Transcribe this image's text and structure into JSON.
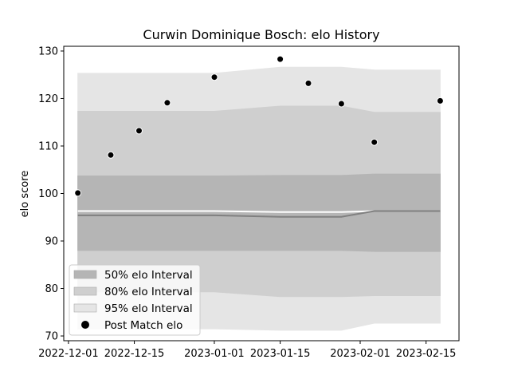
{
  "chart_data": {
    "type": "area",
    "title": "Curwin Dominique Bosch: elo History",
    "xlabel": "",
    "ylabel": "elo score",
    "xlim": [
      "2022-11-30",
      "2023-02-22"
    ],
    "ylim": [
      69,
      131
    ],
    "x_ticks": [
      {
        "date": "2022-12-01",
        "label": "2022-12-01"
      },
      {
        "date": "2022-12-15",
        "label": "2022-12-15"
      },
      {
        "date": "2023-01-01",
        "label": "2023-01-01"
      },
      {
        "date": "2023-01-15",
        "label": "2023-01-15"
      },
      {
        "date": "2023-02-01",
        "label": "2023-02-01"
      },
      {
        "date": "2023-02-15",
        "label": "2023-02-15"
      }
    ],
    "y_ticks": [
      70,
      80,
      90,
      100,
      110,
      120,
      130
    ],
    "band_dates": [
      "2022-12-03",
      "2023-01-01",
      "2023-01-15",
      "2023-01-28",
      "2023-02-04",
      "2023-02-18"
    ],
    "intervals": [
      {
        "name": "95% elo Interval",
        "color": "#e5e5e5",
        "lower": [
          71.5,
          71.5,
          71.2,
          71.2,
          72.7,
          72.7
        ],
        "upper": [
          125.3,
          125.3,
          126.6,
          126.6,
          126.0,
          126.0
        ]
      },
      {
        "name": "80% elo Interval",
        "color": "#cfcfcf",
        "lower": [
          79.3,
          79.3,
          78.3,
          78.3,
          78.5,
          78.5
        ],
        "upper": [
          117.3,
          117.3,
          118.4,
          118.4,
          117.1,
          117.1
        ]
      },
      {
        "name": "50% elo Interval",
        "color": "#b5b5b5",
        "lower": [
          88.0,
          88.0,
          88.0,
          88.0,
          87.8,
          87.8
        ],
        "upper": [
          103.7,
          103.7,
          103.8,
          103.8,
          104.1,
          104.1
        ]
      }
    ],
    "center_light": [
      96.3,
      96.3,
      96.1,
      96.1,
      96.3,
      96.3
    ],
    "center_dark": [
      95.4,
      95.4,
      95.1,
      95.1,
      96.3,
      96.3
    ],
    "points": {
      "name": "Post Match elo",
      "x": [
        "2022-12-03",
        "2022-12-10",
        "2022-12-16",
        "2022-12-22",
        "2023-01-01",
        "2023-01-15",
        "2023-01-21",
        "2023-01-28",
        "2023-02-04",
        "2023-02-18"
      ],
      "y": [
        100.1,
        108.1,
        113.2,
        119.1,
        124.5,
        128.3,
        123.2,
        118.9,
        110.8,
        119.5
      ]
    },
    "legend": {
      "position": "lower-left",
      "entries": [
        {
          "label": "50% elo Interval",
          "color": "#b5b5b5",
          "kind": "patch"
        },
        {
          "label": "80% elo Interval",
          "color": "#cfcfcf",
          "kind": "patch"
        },
        {
          "label": "95% elo Interval",
          "color": "#e5e5e5",
          "kind": "patch"
        },
        {
          "label": "Post Match elo",
          "color": "#000000",
          "kind": "marker"
        }
      ]
    },
    "grid": false
  }
}
